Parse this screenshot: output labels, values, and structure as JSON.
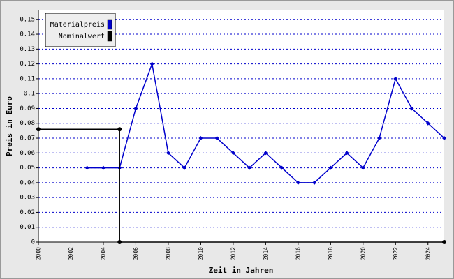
{
  "chart_data": {
    "type": "line",
    "xlabel": "Zeit in Jahren",
    "ylabel": "Preis in Euro",
    "xlim": [
      2000,
      2025
    ],
    "xticks": [
      2000,
      2002,
      2004,
      2006,
      2008,
      2010,
      2012,
      2014,
      2016,
      2018,
      2020,
      2022,
      2024
    ],
    "ylim": [
      0,
      0.156
    ],
    "yticks": [
      0,
      0.01,
      0.02,
      0.03,
      0.04,
      0.05,
      0.06,
      0.07,
      0.08,
      0.09,
      0.1,
      0.11,
      0.12,
      0.13,
      0.14,
      0.15
    ],
    "grid": true,
    "grid_color": "#0000cc",
    "legend": "upper left",
    "series": [
      {
        "name": "Materialpreis",
        "color": "#0000cc",
        "marker": "diamond",
        "x": [
          2003,
          2004,
          2005,
          2006,
          2007,
          2008,
          2009,
          2010,
          2011,
          2012,
          2013,
          2014,
          2015,
          2016,
          2017,
          2018,
          2019,
          2020,
          2021,
          2022,
          2023,
          2024,
          2025
        ],
        "values": [
          0.05,
          0.05,
          0.05,
          0.09,
          0.12,
          0.06,
          0.05,
          0.07,
          0.07,
          0.06,
          0.05,
          0.06,
          0.05,
          0.04,
          0.04,
          0.05,
          0.06,
          0.05,
          0.07,
          0.11,
          0.09,
          0.08,
          0.07
        ]
      },
      {
        "name": "Nominalwert",
        "color": "#000000",
        "marker": "circle",
        "x": [
          2000,
          2005,
          2005,
          2025
        ],
        "values": [
          0.076,
          0.076,
          0,
          0
        ]
      }
    ]
  }
}
